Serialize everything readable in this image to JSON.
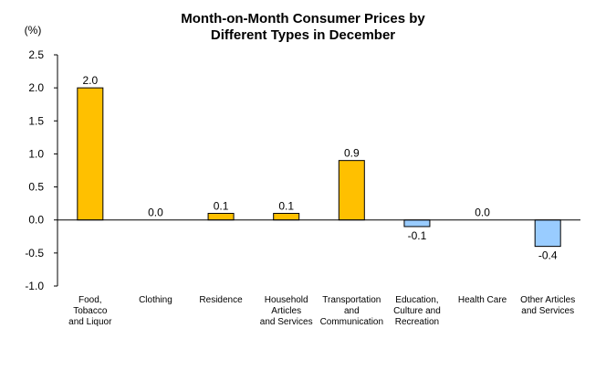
{
  "chart_data": {
    "type": "bar",
    "title_lines": [
      "Month-on-Month Consumer Prices by",
      "Different Types in December"
    ],
    "y_unit": "(%)",
    "ylim": [
      -1.0,
      2.5
    ],
    "y_ticks": [
      "2.5",
      "2.0",
      "1.5",
      "1.0",
      "0.5",
      "0.0",
      "-0.5",
      "-1.0"
    ],
    "y_tick_values": [
      2.5,
      2.0,
      1.5,
      1.0,
      0.5,
      0.0,
      -0.5,
      -1.0
    ],
    "grid": false,
    "legend": "none",
    "categories": [
      [
        "Food,",
        "Tobacco",
        "and Liquor"
      ],
      [
        "Clothing"
      ],
      [
        "Residence"
      ],
      [
        "Household",
        "Articles",
        "and Services"
      ],
      [
        "Transportation",
        "and",
        "Communication"
      ],
      [
        "Education,",
        "Culture and",
        "Recreation"
      ],
      [
        "Health Care"
      ],
      [
        "Other Articles",
        "and Services"
      ]
    ],
    "values": [
      2.0,
      0.0,
      0.1,
      0.1,
      0.9,
      -0.1,
      0.0,
      -0.4
    ],
    "value_labels": [
      "2.0",
      "0.0",
      "0.1",
      "0.1",
      "0.9",
      "-0.1",
      "0.0",
      "-0.4"
    ],
    "colors": {
      "positive": "#FFC000",
      "negative": "#99CCFF",
      "outline": "#000000"
    }
  }
}
